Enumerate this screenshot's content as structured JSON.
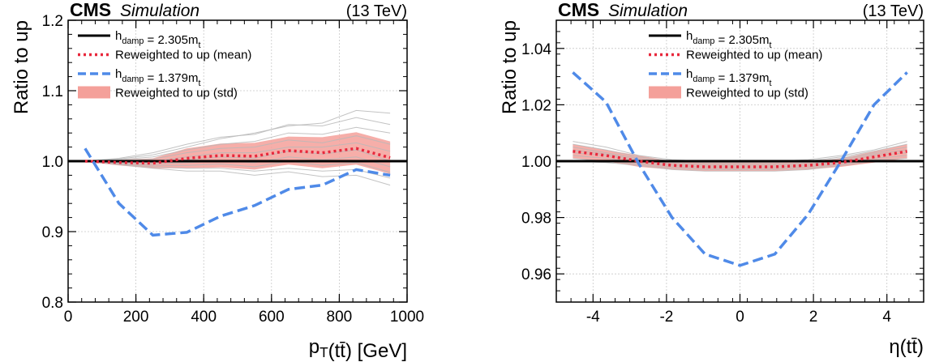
{
  "chart_data": [
    {
      "type": "line",
      "experiment": "CMS",
      "subtitle": "Simulation",
      "energy": "(13 TeV)",
      "xlabel": "p_T(tt̄) [GeV]",
      "ylabel": "Ratio to up",
      "xlim": [
        0,
        1000
      ],
      "ylim": [
        0.8,
        1.2
      ],
      "xticks": [
        0,
        200,
        400,
        600,
        800,
        1000
      ],
      "yticks": [
        0.8,
        0.9,
        1.0,
        1.1,
        1.2
      ],
      "xtick_labels": [
        "0",
        "200",
        "400",
        "600",
        "800",
        "1000"
      ],
      "ytick_labels": [
        "0.8",
        "0.9",
        "1.0",
        "1.1",
        "1.2"
      ],
      "grid": true,
      "legend_position": "top-left",
      "x": [
        50,
        150,
        250,
        350,
        450,
        550,
        650,
        750,
        850,
        950
      ],
      "series": [
        {
          "name": "h_damp = 2.305m_t",
          "style": "solid",
          "color": "#000000",
          "values": [
            1.0,
            1.0,
            1.0,
            1.0,
            1.0,
            1.0,
            1.0,
            1.0,
            1.0,
            1.0
          ]
        },
        {
          "name": "Reweighted to up (mean)",
          "style": "dotted",
          "color": "#e8283c",
          "values": [
            1.0,
            0.998,
            0.997,
            1.004,
            1.008,
            1.007,
            1.015,
            1.012,
            1.018,
            1.005
          ]
        },
        {
          "name": "h_damp = 1.379m_t",
          "style": "dashed",
          "color": "#4f8ae8",
          "values": [
            1.018,
            0.94,
            0.895,
            0.899,
            0.922,
            0.937,
            0.96,
            0.966,
            0.988,
            0.98
          ]
        },
        {
          "name": "Reweighted to up (std)",
          "style": "band",
          "color": "#f4a09a",
          "lower": [
            0.999,
            0.994,
            0.99,
            0.99,
            0.991,
            0.988,
            0.995,
            0.99,
            0.995,
            0.982
          ],
          "upper": [
            1.001,
            1.002,
            1.004,
            1.018,
            1.025,
            1.026,
            1.035,
            1.034,
            1.041,
            1.028
          ]
        }
      ],
      "replicas": {
        "color": "#b8b8b8",
        "lines": [
          [
            1.0,
            1.004,
            1.012,
            1.024,
            1.034,
            1.038,
            1.052,
            1.05,
            1.062,
            1.052
          ],
          [
            1.0,
            1.003,
            1.009,
            1.02,
            1.032,
            1.04,
            1.05,
            1.054,
            1.072,
            1.068
          ],
          [
            1.0,
            1.002,
            1.006,
            1.016,
            1.024,
            1.028,
            1.04,
            1.038,
            1.048,
            1.04
          ],
          [
            1.0,
            1.001,
            1.003,
            1.012,
            1.018,
            1.02,
            1.03,
            1.026,
            1.036,
            1.024
          ],
          [
            1.0,
            1.0,
            1.0,
            1.006,
            1.012,
            1.012,
            1.02,
            1.02,
            1.026,
            1.014
          ],
          [
            1.0,
            0.999,
            0.998,
            1.002,
            1.006,
            1.004,
            1.014,
            1.01,
            1.016,
            1.0
          ],
          [
            1.0,
            0.998,
            0.996,
            0.998,
            1.0,
            0.998,
            1.006,
            1.002,
            1.006,
            0.992
          ],
          [
            1.0,
            0.997,
            0.994,
            0.994,
            0.996,
            0.992,
            1.0,
            0.994,
            0.998,
            0.984
          ],
          [
            1.0,
            0.996,
            0.992,
            0.99,
            0.99,
            0.986,
            0.99,
            0.986,
            0.988,
            0.976
          ],
          [
            1.0,
            0.995,
            0.99,
            0.986,
            0.986,
            0.98,
            0.985,
            0.978,
            0.98,
            0.966
          ]
        ]
      }
    },
    {
      "type": "line",
      "experiment": "CMS",
      "subtitle": "Simulation",
      "energy": "(13 TeV)",
      "xlabel": "η(tt̄)",
      "ylabel": "Ratio to up",
      "xlim": [
        -5,
        5
      ],
      "ylim": [
        0.95,
        1.05
      ],
      "xticks": [
        -4,
        -2,
        0,
        2,
        4
      ],
      "yticks": [
        0.96,
        0.98,
        1.0,
        1.02,
        1.04
      ],
      "xtick_labels": [
        "-4",
        "-2",
        "0",
        "2",
        "4"
      ],
      "ytick_labels": [
        "0.96",
        "0.98",
        "1.00",
        "1.02",
        "1.04"
      ],
      "grid": true,
      "legend_position": "top-center",
      "x": [
        -4.55,
        -3.65,
        -2.75,
        -1.85,
        -0.95,
        0,
        0.95,
        1.85,
        2.75,
        3.65,
        4.55
      ],
      "series": [
        {
          "name": "h_damp = 2.305m_t",
          "style": "solid",
          "color": "#000000",
          "values": [
            1.0,
            1.0,
            1.0,
            1.0,
            1.0,
            1.0,
            1.0,
            1.0,
            1.0,
            1.0,
            1.0
          ]
        },
        {
          "name": "Reweighted to up (mean)",
          "style": "dotted",
          "color": "#e8283c",
          "values": [
            1.0035,
            1.002,
            1.0,
            0.9985,
            0.998,
            0.998,
            0.998,
            0.9985,
            0.9995,
            1.0015,
            1.0035
          ]
        },
        {
          "name": "h_damp = 1.379m_t",
          "style": "dashed",
          "color": "#4f8ae8",
          "values": [
            1.0315,
            1.021,
            0.999,
            0.98,
            0.967,
            0.963,
            0.967,
            0.981,
            1.0,
            1.02,
            1.0315
          ]
        },
        {
          "name": "Reweighted to up (std)",
          "style": "band",
          "color": "#f4a09a",
          "lower": [
            1.001,
            1.0,
            0.998,
            0.997,
            0.9965,
            0.9965,
            0.9965,
            0.997,
            0.998,
            0.9995,
            1.001
          ],
          "upper": [
            1.006,
            1.004,
            1.002,
            1.0,
            0.9995,
            0.9995,
            0.9995,
            1.0,
            1.001,
            1.0035,
            1.006
          ]
        }
      ],
      "replicas": {
        "color": "#b8b8b8",
        "lines": [
          [
            1.007,
            1.005,
            1.002,
            1.0005,
            1.0,
            1.0,
            1.0,
            1.0005,
            1.002,
            1.004,
            1.007
          ],
          [
            1.006,
            1.004,
            1.0015,
            1.0,
            0.9995,
            0.9995,
            0.9995,
            1.0,
            1.0015,
            1.0035,
            1.006
          ],
          [
            1.005,
            1.003,
            1.001,
            0.9995,
            0.999,
            0.999,
            0.999,
            0.9995,
            1.001,
            1.003,
            1.005
          ],
          [
            1.004,
            1.0025,
            1.0005,
            0.999,
            0.9985,
            0.9985,
            0.9985,
            0.999,
            1.0005,
            1.0025,
            1.004
          ],
          [
            1.003,
            1.002,
            1.0,
            0.9985,
            0.998,
            0.998,
            0.998,
            0.9985,
            1.0,
            1.002,
            1.003
          ],
          [
            1.002,
            1.001,
            0.9995,
            0.998,
            0.9975,
            0.9975,
            0.9975,
            0.998,
            0.9995,
            1.001,
            1.002
          ],
          [
            1.001,
            1.0,
            0.999,
            0.9975,
            0.997,
            0.997,
            0.997,
            0.9975,
            0.999,
            1.0005,
            1.001
          ],
          [
            1.0,
            0.9995,
            0.9985,
            0.997,
            0.9965,
            0.9965,
            0.9965,
            0.997,
            0.9985,
            1.0,
            1.0
          ]
        ]
      }
    }
  ]
}
